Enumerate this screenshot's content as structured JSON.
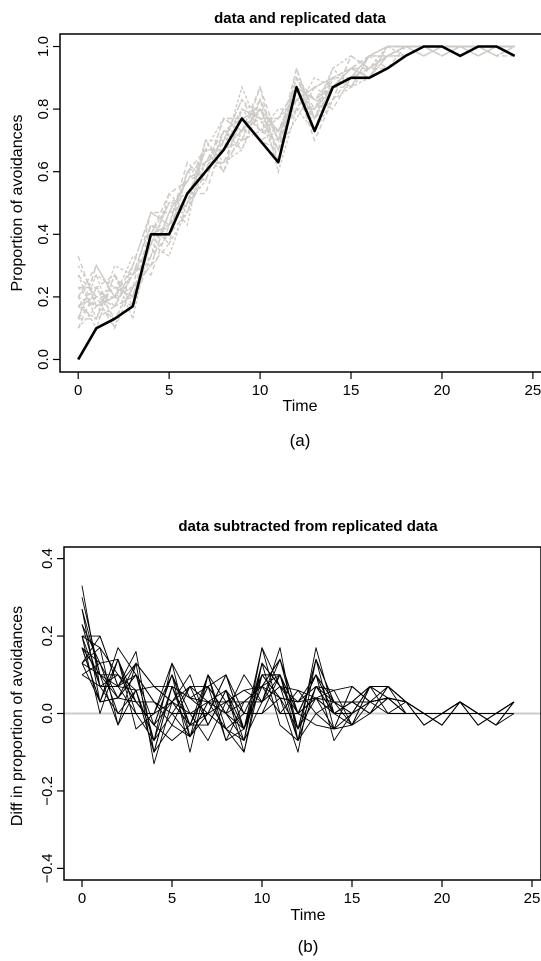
{
  "chart_data": [
    {
      "type": "line",
      "title": "data and replicated data",
      "xlabel": "Time",
      "ylabel": "Proportion of avoidances",
      "caption": "(a)",
      "xlim": [
        -1,
        25.5
      ],
      "ylim": [
        -0.04,
        1.04
      ],
      "xticks": [
        0,
        5,
        10,
        15,
        20,
        25
      ],
      "yticks": [
        "0.0",
        "0.2",
        "0.4",
        "0.6",
        "0.8",
        "1.0"
      ],
      "grid": false,
      "colors": {
        "observed": "#000000",
        "replicated": "#cfcac6"
      },
      "observed": {
        "x": [
          0,
          1,
          2,
          3,
          4,
          5,
          6,
          7,
          8,
          9,
          10,
          11,
          12,
          13,
          14,
          15,
          16,
          17,
          18,
          19,
          20,
          21,
          22,
          23,
          24
        ],
        "values": [
          0.0,
          0.1,
          0.13,
          0.17,
          0.4,
          0.4,
          0.53,
          0.6,
          0.67,
          0.77,
          0.7,
          0.63,
          0.87,
          0.73,
          0.87,
          0.9,
          0.9,
          0.93,
          0.97,
          1.0,
          1.0,
          0.97,
          1.0,
          1.0,
          0.97
        ]
      },
      "replicated": [
        [
          0.17,
          0.13,
          0.17,
          0.2,
          0.37,
          0.43,
          0.5,
          0.6,
          0.7,
          0.73,
          0.8,
          0.73,
          0.83,
          0.77,
          0.87,
          0.93,
          0.93,
          0.97,
          1.0,
          1.0,
          1.0,
          0.97,
          1.0,
          1.0,
          1.0
        ],
        [
          0.13,
          0.2,
          0.1,
          0.23,
          0.3,
          0.47,
          0.57,
          0.67,
          0.6,
          0.8,
          0.77,
          0.67,
          0.9,
          0.8,
          0.9,
          0.93,
          0.9,
          0.97,
          0.97,
          1.0,
          1.0,
          1.0,
          1.0,
          0.97,
          0.97
        ],
        [
          0.23,
          0.17,
          0.2,
          0.27,
          0.43,
          0.37,
          0.47,
          0.63,
          0.67,
          0.7,
          0.83,
          0.6,
          0.8,
          0.73,
          0.83,
          0.87,
          0.97,
          1.0,
          1.0,
          1.0,
          0.97,
          1.0,
          1.0,
          1.0,
          1.0
        ],
        [
          0.1,
          0.23,
          0.13,
          0.17,
          0.33,
          0.4,
          0.6,
          0.57,
          0.73,
          0.77,
          0.7,
          0.73,
          0.87,
          0.83,
          0.8,
          0.9,
          0.93,
          0.93,
          1.0,
          0.97,
          1.0,
          1.0,
          0.97,
          1.0,
          1.0
        ],
        [
          0.2,
          0.1,
          0.27,
          0.13,
          0.4,
          0.5,
          0.43,
          0.7,
          0.63,
          0.67,
          0.8,
          0.67,
          0.77,
          0.87,
          0.9,
          0.87,
          0.97,
          0.97,
          0.97,
          1.0,
          1.0,
          1.0,
          1.0,
          1.0,
          0.97
        ],
        [
          0.27,
          0.2,
          0.17,
          0.3,
          0.27,
          0.43,
          0.53,
          0.53,
          0.7,
          0.83,
          0.73,
          0.7,
          0.93,
          0.77,
          0.87,
          0.93,
          0.9,
          1.0,
          1.0,
          1.0,
          1.0,
          0.97,
          1.0,
          1.0,
          1.0
        ],
        [
          0.13,
          0.27,
          0.23,
          0.2,
          0.37,
          0.33,
          0.5,
          0.67,
          0.77,
          0.73,
          0.77,
          0.77,
          0.83,
          0.8,
          0.93,
          0.97,
          0.93,
          0.97,
          1.0,
          1.0,
          1.0,
          1.0,
          1.0,
          0.97,
          1.0
        ],
        [
          0.33,
          0.17,
          0.13,
          0.23,
          0.47,
          0.47,
          0.57,
          0.6,
          0.63,
          0.7,
          0.87,
          0.63,
          0.87,
          0.7,
          0.83,
          0.9,
          0.97,
          0.93,
          0.97,
          1.0,
          0.97,
          1.0,
          1.0,
          1.0,
          1.0
        ],
        [
          0.17,
          0.13,
          0.3,
          0.27,
          0.33,
          0.53,
          0.47,
          0.63,
          0.67,
          0.8,
          0.73,
          0.8,
          0.8,
          0.9,
          0.87,
          0.87,
          0.9,
          1.0,
          1.0,
          0.97,
          1.0,
          1.0,
          1.0,
          1.0,
          1.0
        ],
        [
          0.2,
          0.3,
          0.2,
          0.17,
          0.4,
          0.43,
          0.63,
          0.57,
          0.73,
          0.67,
          0.83,
          0.7,
          0.9,
          0.77,
          0.9,
          0.93,
          0.97,
          0.97,
          1.0,
          1.0,
          1.0,
          1.0,
          0.97,
          1.0,
          1.0
        ],
        [
          0.1,
          0.17,
          0.2,
          0.33,
          0.3,
          0.47,
          0.5,
          0.7,
          0.6,
          0.73,
          0.8,
          0.73,
          0.87,
          0.83,
          0.87,
          0.9,
          0.93,
          1.0,
          0.97,
          1.0,
          1.0,
          1.0,
          1.0,
          1.0,
          1.0
        ],
        [
          0.23,
          0.23,
          0.27,
          0.2,
          0.43,
          0.4,
          0.47,
          0.6,
          0.77,
          0.77,
          0.7,
          0.67,
          0.83,
          0.87,
          0.83,
          0.97,
          0.93,
          0.97,
          1.0,
          1.0,
          1.0,
          0.97,
          1.0,
          1.0,
          1.0
        ],
        [
          0.27,
          0.13,
          0.17,
          0.27,
          0.37,
          0.5,
          0.53,
          0.63,
          0.7,
          0.83,
          0.77,
          0.63,
          0.93,
          0.73,
          0.9,
          0.9,
          0.97,
          1.0,
          1.0,
          1.0,
          1.0,
          1.0,
          1.0,
          1.0,
          0.97
        ],
        [
          0.17,
          0.2,
          0.23,
          0.23,
          0.3,
          0.37,
          0.6,
          0.67,
          0.67,
          0.73,
          0.87,
          0.7,
          0.8,
          0.8,
          0.87,
          0.93,
          0.9,
          0.97,
          1.0,
          1.0,
          0.97,
          1.0,
          1.0,
          1.0,
          1.0
        ],
        [
          0.2,
          0.27,
          0.1,
          0.3,
          0.47,
          0.43,
          0.5,
          0.57,
          0.73,
          0.7,
          0.73,
          0.77,
          0.87,
          0.77,
          0.93,
          0.87,
          0.93,
          0.97,
          0.97,
          1.0,
          1.0,
          1.0,
          1.0,
          0.97,
          1.0
        ],
        [
          0.13,
          0.13,
          0.27,
          0.17,
          0.4,
          0.53,
          0.57,
          0.63,
          0.63,
          0.77,
          0.8,
          0.67,
          0.9,
          0.83,
          0.87,
          0.93,
          0.97,
          1.0,
          1.0,
          1.0,
          1.0,
          1.0,
          0.97,
          1.0,
          1.0
        ],
        [
          0.3,
          0.2,
          0.2,
          0.23,
          0.33,
          0.47,
          0.47,
          0.7,
          0.7,
          0.8,
          0.77,
          0.73,
          0.83,
          0.87,
          0.9,
          0.9,
          0.93,
          0.97,
          1.0,
          1.0,
          1.0,
          0.97,
          1.0,
          1.0,
          1.0
        ],
        [
          0.17,
          0.23,
          0.17,
          0.27,
          0.43,
          0.4,
          0.53,
          0.6,
          0.77,
          0.73,
          0.83,
          0.7,
          0.87,
          0.77,
          0.83,
          0.97,
          0.93,
          0.97,
          1.0,
          0.97,
          1.0,
          1.0,
          1.0,
          1.0,
          1.0
        ],
        [
          0.2,
          0.17,
          0.23,
          0.2,
          0.37,
          0.5,
          0.5,
          0.67,
          0.67,
          0.87,
          0.73,
          0.73,
          0.8,
          0.8,
          0.87,
          0.9,
          0.97,
          1.0,
          1.0,
          1.0,
          1.0,
          1.0,
          1.0,
          1.0,
          1.0
        ],
        [
          0.13,
          0.3,
          0.2,
          0.3,
          0.47,
          0.43,
          0.6,
          0.63,
          0.73,
          0.73,
          0.77,
          0.77,
          0.87,
          0.83,
          0.9,
          0.93,
          0.93,
          0.97,
          1.0,
          1.0,
          0.97,
          1.0,
          1.0,
          0.97,
          1.0
        ]
      ]
    },
    {
      "type": "line",
      "title": "data subtracted from replicated data",
      "xlabel": "Time",
      "ylabel": "Diff in proportion of avoidances",
      "caption": "(b)",
      "xlim": [
        -1,
        25.5
      ],
      "ylim": [
        -0.43,
        0.43
      ],
      "xticks": [
        0,
        5,
        10,
        15,
        20,
        25
      ],
      "yticks": [
        "−0.4",
        "−0.2",
        "0.0",
        "0.2",
        "0.4"
      ],
      "grid": false,
      "reference_line": 0.0,
      "colors": {
        "differences": "#000000",
        "reference": "#cccccc"
      }
    }
  ]
}
